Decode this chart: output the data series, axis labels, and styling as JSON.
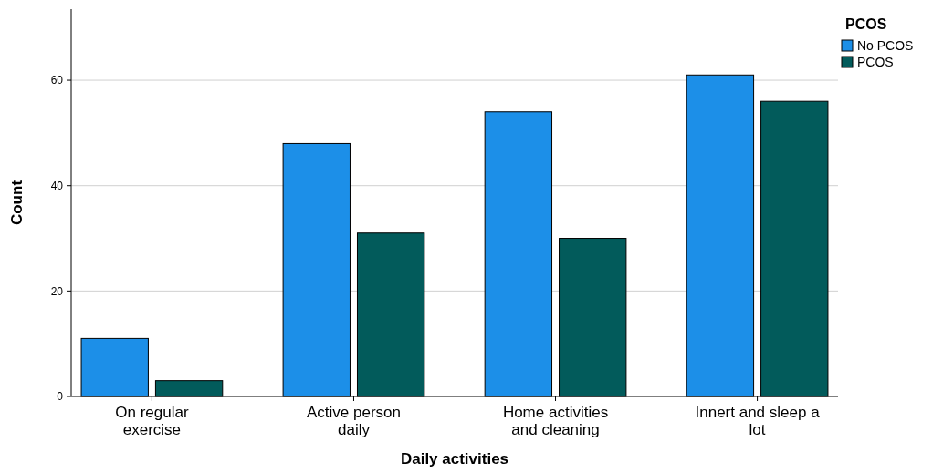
{
  "chart_data": {
    "type": "bar",
    "xlabel": "Daily activities",
    "ylabel": "Count",
    "legend_title": "PCOS",
    "categories": [
      "On regular exercise",
      "Active person daily",
      "Home activities and cleaning",
      "Innert and sleep a lot"
    ],
    "series": [
      {
        "name": "No PCOS",
        "color": "#1c8fe8",
        "values": [
          11,
          48,
          54,
          61
        ]
      },
      {
        "name": "PCOS",
        "color": "#025b5b",
        "values": [
          3,
          31,
          30,
          56
        ]
      }
    ],
    "ylim": [
      0,
      73.5
    ],
    "yticks": [
      0,
      20,
      40,
      60
    ],
    "grid": "y",
    "legend": "top right"
  }
}
